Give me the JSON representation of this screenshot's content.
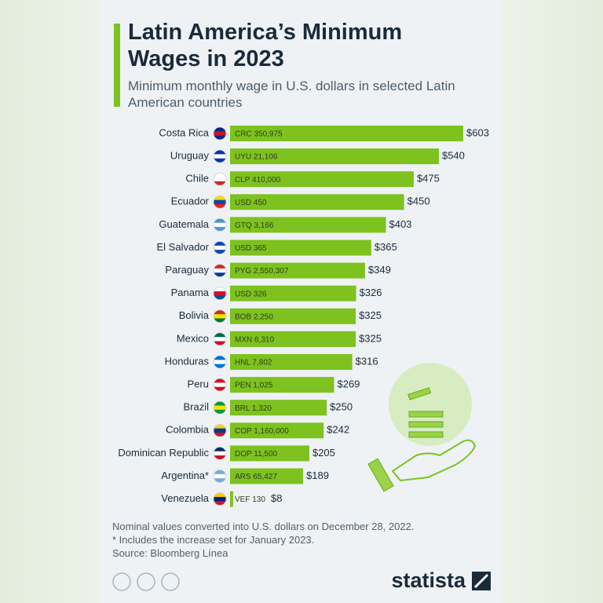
{
  "header": {
    "title": "Latin America’s Minimum Wages in 2023",
    "subtitle": "Minimum monthly wage in U.S. dollars in selected Latin American countries"
  },
  "chart_data": {
    "type": "bar",
    "orientation": "horizontal",
    "categories": [
      "Costa Rica",
      "Uruguay",
      "Chile",
      "Ecuador",
      "Guatemala",
      "El Salvador",
      "Paraguay",
      "Panama",
      "Bolivia",
      "Mexico",
      "Honduras",
      "Peru",
      "Brazil",
      "Colombia",
      "Dominican Republic",
      "Argentina*",
      "Venezuela"
    ],
    "values": [
      603,
      540,
      475,
      450,
      403,
      365,
      349,
      326,
      325,
      325,
      316,
      269,
      250,
      242,
      205,
      189,
      8
    ],
    "value_labels": [
      "$603",
      "$540",
      "$475",
      "$450",
      "$403",
      "$365",
      "$349",
      "$326",
      "$325",
      "$325",
      "$316",
      "$269",
      "$250",
      "$242",
      "$205",
      "$189",
      "$8"
    ],
    "local_currency_labels": [
      "CRC 350,975",
      "UYU 21,106",
      "CLP 410,000",
      "USD 450",
      "GTQ 3,166",
      "USD 365",
      "PYG 2,550,307",
      "USD 326",
      "BOB 2,250",
      "MXN 6,310",
      "HNL 7,802",
      "PEN 1,025",
      "BRL 1,320",
      "COP 1,160,000",
      "DOP 11,500",
      "ARS 65,427",
      "VEF 130"
    ],
    "color": "#7dc21e"
  },
  "footer": {
    "notes": [
      "Nominal values converted into U.S. dollars on December 28, 2022.",
      "* Includes the increase set for January 2023.",
      "Source: Bloomberg Línea"
    ],
    "brand": "statista"
  }
}
